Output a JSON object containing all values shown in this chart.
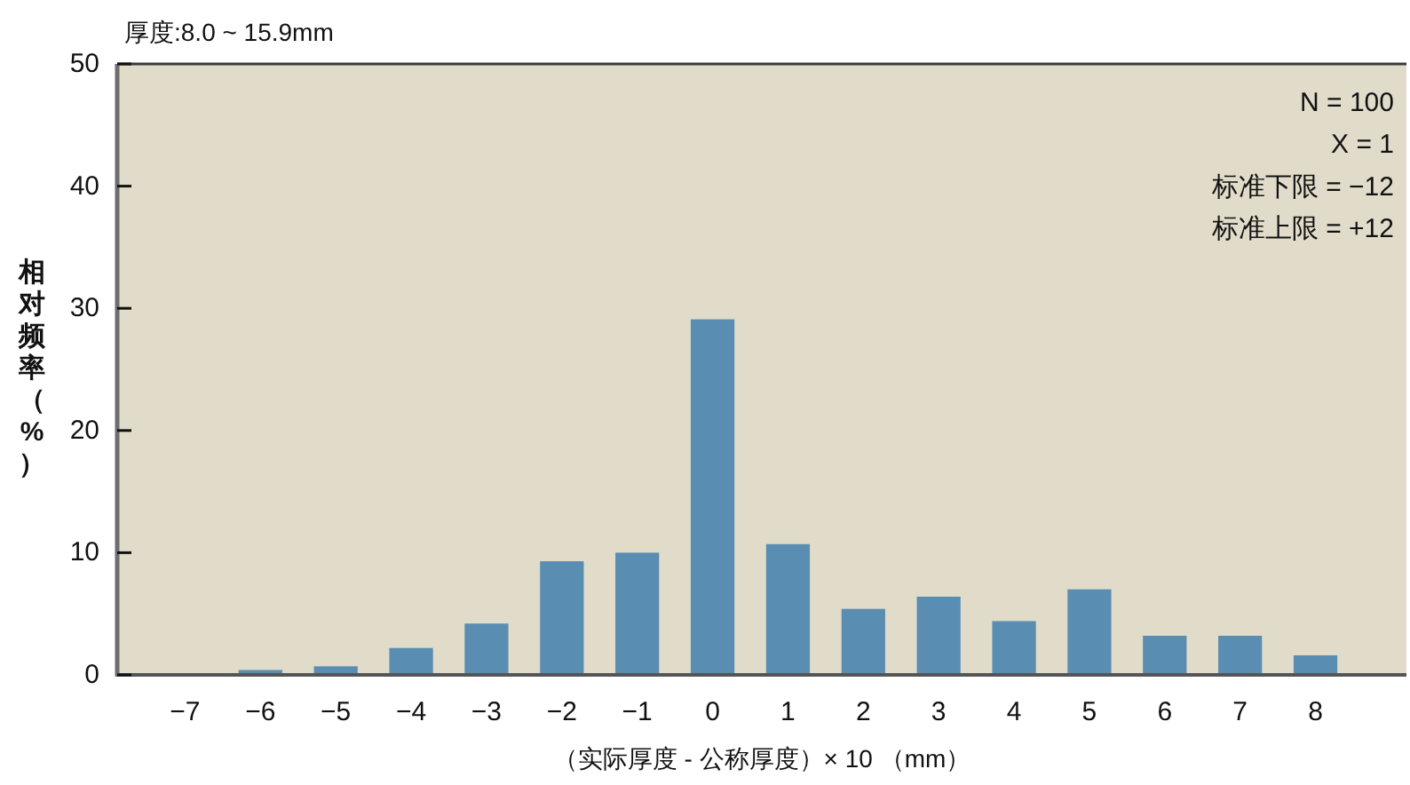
{
  "chart_data": {
    "type": "bar",
    "title": "厚度:8.0 ~ 15.9mm",
    "xlabel": "（实际厚度 - 公称厚度）× 10 （mm）",
    "ylabel": "相对频率（%）",
    "annotations": [
      "N = 100",
      "X = 1",
      "标准下限 = −12",
      "标准上限 = +12"
    ],
    "categories": [
      "−7",
      "−6",
      "−5",
      "−4",
      "−3",
      "−2",
      "−1",
      "0",
      "1",
      "2",
      "3",
      "4",
      "5",
      "6",
      "7",
      "8"
    ],
    "values": [
      0,
      0.4,
      0.7,
      2.2,
      4.2,
      9.3,
      10.0,
      29.1,
      10.7,
      5.4,
      6.4,
      4.4,
      7.0,
      3.2,
      3.2,
      1.6
    ],
    "color": "#5a8db2",
    "ylim": [
      0,
      50
    ],
    "yticks": [
      0,
      10,
      20,
      30,
      40,
      50
    ]
  }
}
